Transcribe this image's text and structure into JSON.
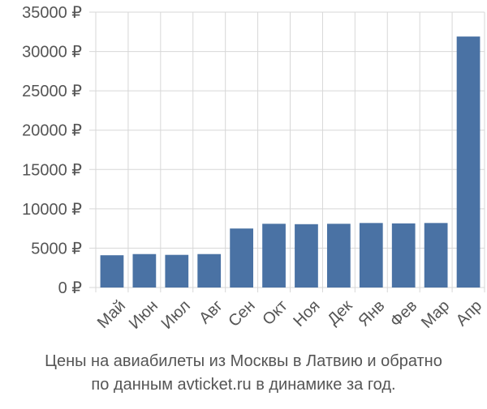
{
  "chart_data": {
    "type": "bar",
    "categories": [
      "Май",
      "Июн",
      "Июл",
      "Авг",
      "Сен",
      "Окт",
      "Ноя",
      "Дек",
      "Янв",
      "Фев",
      "Мар",
      "Апр"
    ],
    "values": [
      4100,
      4250,
      4150,
      4250,
      7500,
      8100,
      8050,
      8100,
      8200,
      8150,
      8200,
      31900
    ],
    "ylim": [
      0,
      35000
    ],
    "yticks": [
      0,
      5000,
      10000,
      15000,
      20000,
      25000,
      30000,
      35000
    ],
    "ytick_labels": [
      "0 ₽",
      "5000 ₽",
      "10000 ₽",
      "15000 ₽",
      "20000 ₽",
      "25000 ₽",
      "30000 ₽",
      "35000 ₽"
    ],
    "grid": true,
    "colors": {
      "bar": "#4a72a4",
      "grid": "#d7d7d7",
      "text": "#555555"
    }
  },
  "caption": {
    "line1": "Цены на авиабилеты из Москвы в Латвию и обратно",
    "line2": "по данным avticket.ru в динамике за год."
  }
}
